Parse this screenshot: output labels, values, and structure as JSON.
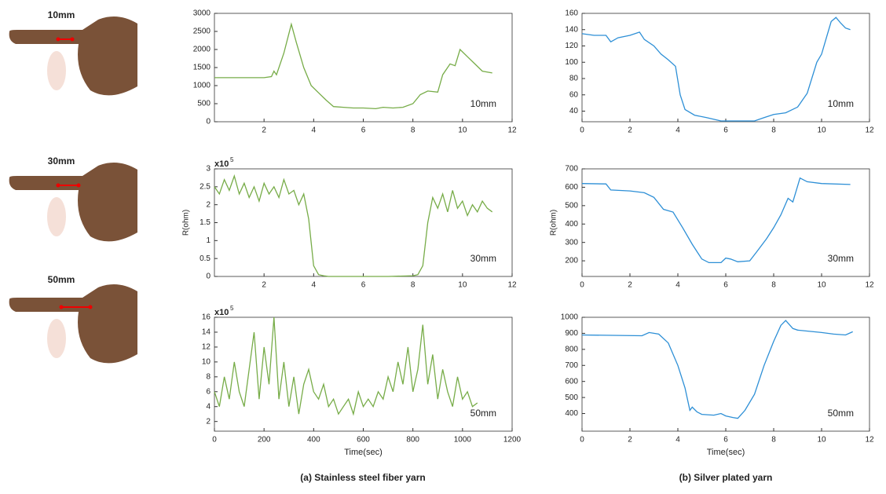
{
  "finger_labels": [
    "10mm",
    "30mm",
    "50mm"
  ],
  "captions": [
    "(a) Stainless steel fiber yarn",
    "(b) Silver plated yarn"
  ],
  "chart_data": [
    {
      "type": "line",
      "annotation": "10mm",
      "xlim": [
        0,
        12
      ],
      "xticks": [
        2,
        4,
        6,
        8,
        10,
        12
      ],
      "ylim": [
        0,
        3000
      ],
      "yticks": [
        0,
        500,
        1000,
        1500,
        2000,
        2500,
        3000
      ],
      "x": [
        0,
        1,
        2,
        2.3,
        2.4,
        2.5,
        2.8,
        3.1,
        3.3,
        3.6,
        3.9,
        4.2,
        4.5,
        4.8,
        5.2,
        5.6,
        6,
        6.5,
        6.8,
        7.2,
        7.6,
        8,
        8.3,
        8.6,
        9,
        9.2,
        9.5,
        9.7,
        9.9,
        10.2,
        10.5,
        10.8,
        11.2
      ],
      "series": [
        {
          "color": "#77ac48",
          "values": [
            1220,
            1220,
            1220,
            1250,
            1400,
            1300,
            1900,
            2700,
            2200,
            1500,
            1000,
            800,
            600,
            420,
            400,
            380,
            380,
            360,
            400,
            380,
            400,
            500,
            750,
            850,
            820,
            1300,
            1600,
            1550,
            2000,
            1800,
            1600,
            1400,
            1350
          ]
        }
      ]
    },
    {
      "type": "line",
      "annotation": "10mm",
      "xlim": [
        0,
        12
      ],
      "xticks": [
        0,
        2,
        4,
        6,
        8,
        10,
        12
      ],
      "ylim": [
        27,
        160
      ],
      "yticks": [
        40,
        60,
        80,
        100,
        120,
        140,
        160
      ],
      "x": [
        0,
        0.5,
        1,
        1.2,
        1.5,
        2,
        2.4,
        2.6,
        3,
        3.3,
        3.6,
        3.9,
        4.1,
        4.3,
        4.7,
        5.2,
        5.8,
        6.5,
        7.2,
        7.6,
        8,
        8.5,
        9,
        9.4,
        9.8,
        10,
        10.2,
        10.4,
        10.6,
        10.8,
        11,
        11.2
      ],
      "series": [
        {
          "color": "#2d8fd6",
          "values": [
            135,
            133,
            133,
            125,
            130,
            133,
            137,
            128,
            120,
            110,
            103,
            95,
            60,
            42,
            35,
            32,
            28,
            28,
            28,
            32,
            36,
            38,
            45,
            62,
            100,
            110,
            130,
            150,
            155,
            148,
            142,
            140
          ]
        }
      ]
    },
    {
      "type": "line",
      "annotation": "30mm",
      "y_label": "R(ohm)",
      "y_multiplier": "x10",
      "y_exponent": "5",
      "xlim": [
        0,
        12
      ],
      "xticks": [
        2,
        4,
        6,
        8,
        10,
        12
      ],
      "ylim": [
        0,
        3
      ],
      "yticks": [
        0,
        0.5,
        1,
        1.5,
        2,
        2.5,
        3
      ],
      "x": [
        0,
        0.2,
        0.4,
        0.6,
        0.8,
        1,
        1.2,
        1.4,
        1.6,
        1.8,
        2,
        2.2,
        2.4,
        2.6,
        2.8,
        3,
        3.2,
        3.4,
        3.6,
        3.8,
        4,
        4.2,
        4.4,
        4.6,
        5,
        6,
        7,
        8,
        8.2,
        8.4,
        8.6,
        8.8,
        9,
        9.2,
        9.4,
        9.6,
        9.8,
        10,
        10.2,
        10.4,
        10.6,
        10.8,
        11,
        11.2
      ],
      "series": [
        {
          "color": "#77ac48",
          "values": [
            2.5,
            2.3,
            2.7,
            2.4,
            2.8,
            2.3,
            2.6,
            2.2,
            2.5,
            2.1,
            2.6,
            2.3,
            2.5,
            2.2,
            2.7,
            2.3,
            2.4,
            2,
            2.3,
            1.6,
            0.3,
            0.05,
            0.02,
            0,
            0,
            0,
            0,
            0.02,
            0.05,
            0.3,
            1.5,
            2.2,
            1.9,
            2.3,
            1.8,
            2.4,
            1.9,
            2.1,
            1.7,
            2,
            1.8,
            2.1,
            1.9,
            1.8
          ]
        }
      ]
    },
    {
      "type": "line",
      "annotation": "30mm",
      "y_label": "R(ohm)",
      "xlim": [
        0,
        12
      ],
      "xticks": [
        0,
        2,
        4,
        6,
        8,
        10,
        12
      ],
      "ylim": [
        115,
        700
      ],
      "yticks": [
        200,
        300,
        400,
        500,
        600,
        700
      ],
      "x": [
        0,
        1,
        1.2,
        2,
        2.6,
        3,
        3.4,
        3.8,
        4.2,
        4.6,
        5,
        5.3,
        5.8,
        6,
        6.2,
        6.5,
        7,
        7.3,
        7.7,
        8,
        8.3,
        8.6,
        8.8,
        9.1,
        9.4,
        10,
        11.2
      ],
      "series": [
        {
          "color": "#2d8fd6",
          "values": [
            620,
            618,
            585,
            580,
            570,
            545,
            480,
            465,
            380,
            290,
            210,
            190,
            190,
            215,
            210,
            195,
            200,
            250,
            320,
            380,
            450,
            540,
            520,
            650,
            630,
            620,
            615
          ]
        }
      ]
    },
    {
      "type": "line",
      "annotation": "50mm",
      "x_label": "Time(sec)",
      "y_multiplier": "x10",
      "y_exponent": "5",
      "xlim": [
        0,
        1200
      ],
      "xticks": [
        0,
        200,
        400,
        600,
        800,
        1000,
        1200
      ],
      "ylim": [
        0.7,
        16
      ],
      "yticks": [
        2,
        4,
        6,
        8,
        10,
        12,
        14,
        16
      ],
      "x": [
        0,
        20,
        40,
        60,
        80,
        100,
        120,
        140,
        160,
        180,
        200,
        220,
        240,
        260,
        280,
        300,
        320,
        340,
        360,
        380,
        400,
        420,
        440,
        460,
        480,
        500,
        520,
        540,
        560,
        580,
        600,
        620,
        640,
        660,
        680,
        700,
        720,
        740,
        760,
        780,
        800,
        820,
        840,
        860,
        880,
        900,
        920,
        940,
        960,
        980,
        1000,
        1020,
        1040,
        1060
      ],
      "series": [
        {
          "color": "#77ac48",
          "values": [
            6,
            4,
            8,
            5,
            10,
            6,
            4,
            9,
            14,
            5,
            12,
            7,
            16,
            5,
            10,
            4,
            8,
            3,
            7,
            9,
            6,
            5,
            7,
            4,
            5,
            3,
            4,
            5,
            3,
            6,
            4,
            5,
            4,
            6,
            5,
            8,
            6,
            10,
            7,
            12,
            6,
            9,
            15,
            7,
            11,
            5,
            9,
            6,
            4,
            8,
            5,
            6,
            4,
            4.5
          ]
        }
      ]
    },
    {
      "type": "line",
      "annotation": "50mm",
      "x_label": "Time(sec)",
      "xlim": [
        0,
        12
      ],
      "xticks": [
        0,
        2,
        4,
        6,
        8,
        10,
        12
      ],
      "ylim": [
        290,
        1000
      ],
      "yticks": [
        400,
        500,
        600,
        700,
        800,
        900,
        1000
      ],
      "x": [
        0,
        2.5,
        2.8,
        3.2,
        3.6,
        4,
        4.3,
        4.5,
        4.6,
        4.8,
        5,
        5.5,
        5.8,
        6,
        6.3,
        6.5,
        6.8,
        7.2,
        7.6,
        8,
        8.3,
        8.5,
        8.8,
        9,
        10,
        10.5,
        11,
        11.3
      ],
      "series": [
        {
          "color": "#2d8fd6",
          "values": [
            890,
            885,
            905,
            895,
            840,
            700,
            560,
            420,
            440,
            410,
            395,
            390,
            400,
            385,
            375,
            370,
            420,
            520,
            700,
            850,
            950,
            980,
            930,
            920,
            905,
            895,
            890,
            910
          ]
        }
      ]
    }
  ]
}
